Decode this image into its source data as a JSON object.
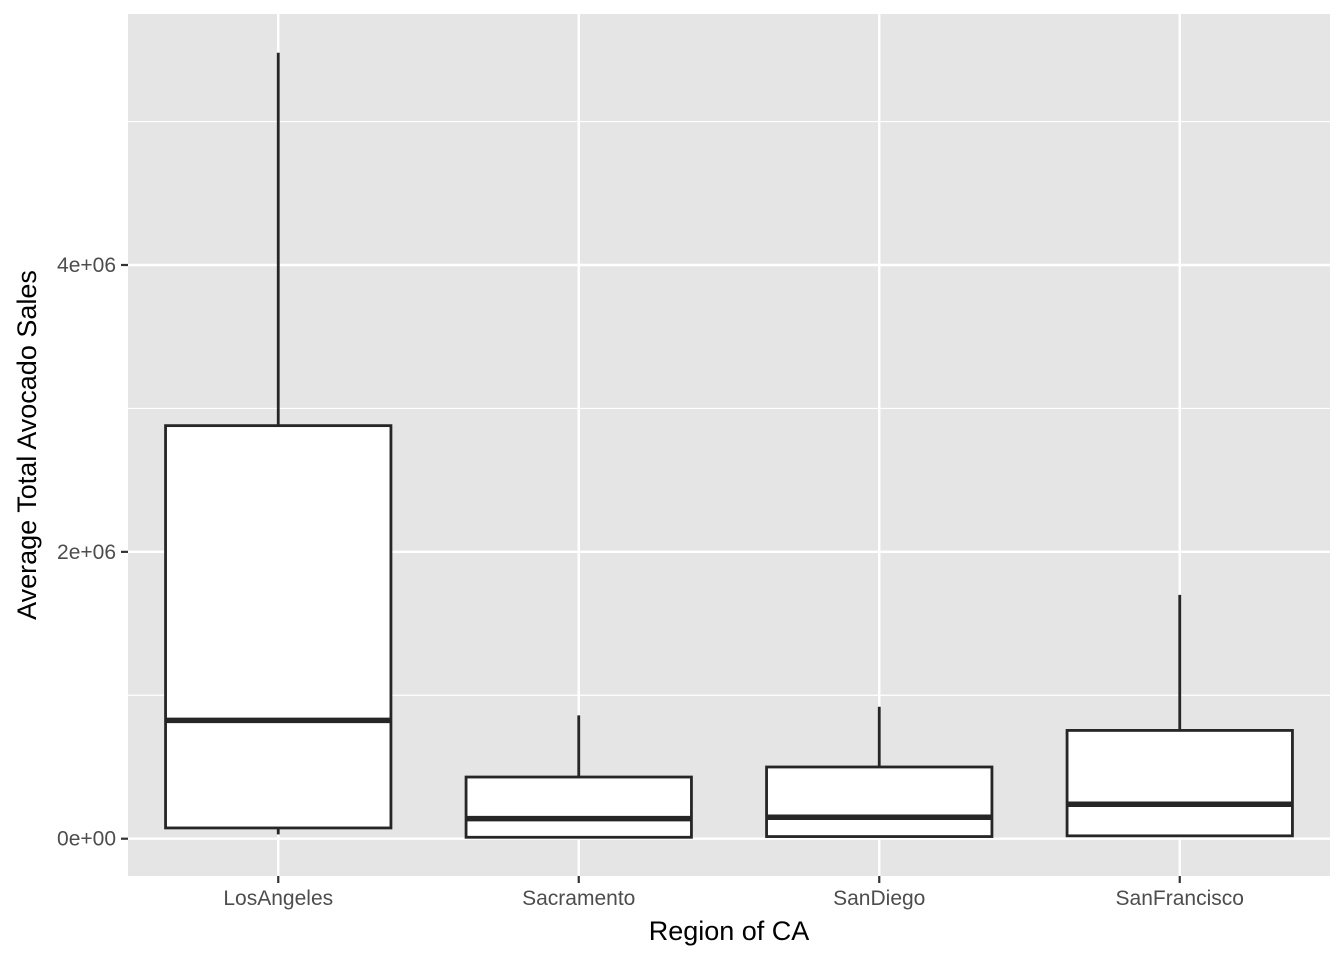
{
  "chart_data": {
    "type": "boxplot",
    "title": "",
    "xlabel": "Region of CA",
    "ylabel": "Average Total Avocado Sales",
    "ylim": [
      -260000,
      5750000
    ],
    "grid": true,
    "legend": "none",
    "y_ticks": [
      {
        "value": 0,
        "label": "0e+00"
      },
      {
        "value": 2000000,
        "label": "2e+06"
      },
      {
        "value": 4000000,
        "label": "4e+06"
      }
    ],
    "y_minor_gridlines": [
      1000000,
      3000000,
      5000000
    ],
    "categories": [
      "LosAngeles",
      "Sacramento",
      "SanDiego",
      "SanFrancisco"
    ],
    "boxes": [
      {
        "category": "LosAngeles",
        "min": 30000,
        "q1": 75000,
        "median": 825000,
        "q3": 2880000,
        "max": 5480000
      },
      {
        "category": "Sacramento",
        "min": 5000,
        "q1": 10000,
        "median": 140000,
        "q3": 430000,
        "max": 860000
      },
      {
        "category": "SanDiego",
        "min": 10000,
        "q1": 15000,
        "median": 150000,
        "q3": 500000,
        "max": 920000
      },
      {
        "category": "SanFrancisco",
        "min": 15000,
        "q1": 20000,
        "median": 240000,
        "q3": 755000,
        "max": 1700000
      }
    ],
    "colors": {
      "panel": "#e5e5e5",
      "grid": "#ffffff",
      "box_fill": "#ffffff",
      "box_line": "#262626",
      "tick": "#333333"
    }
  }
}
